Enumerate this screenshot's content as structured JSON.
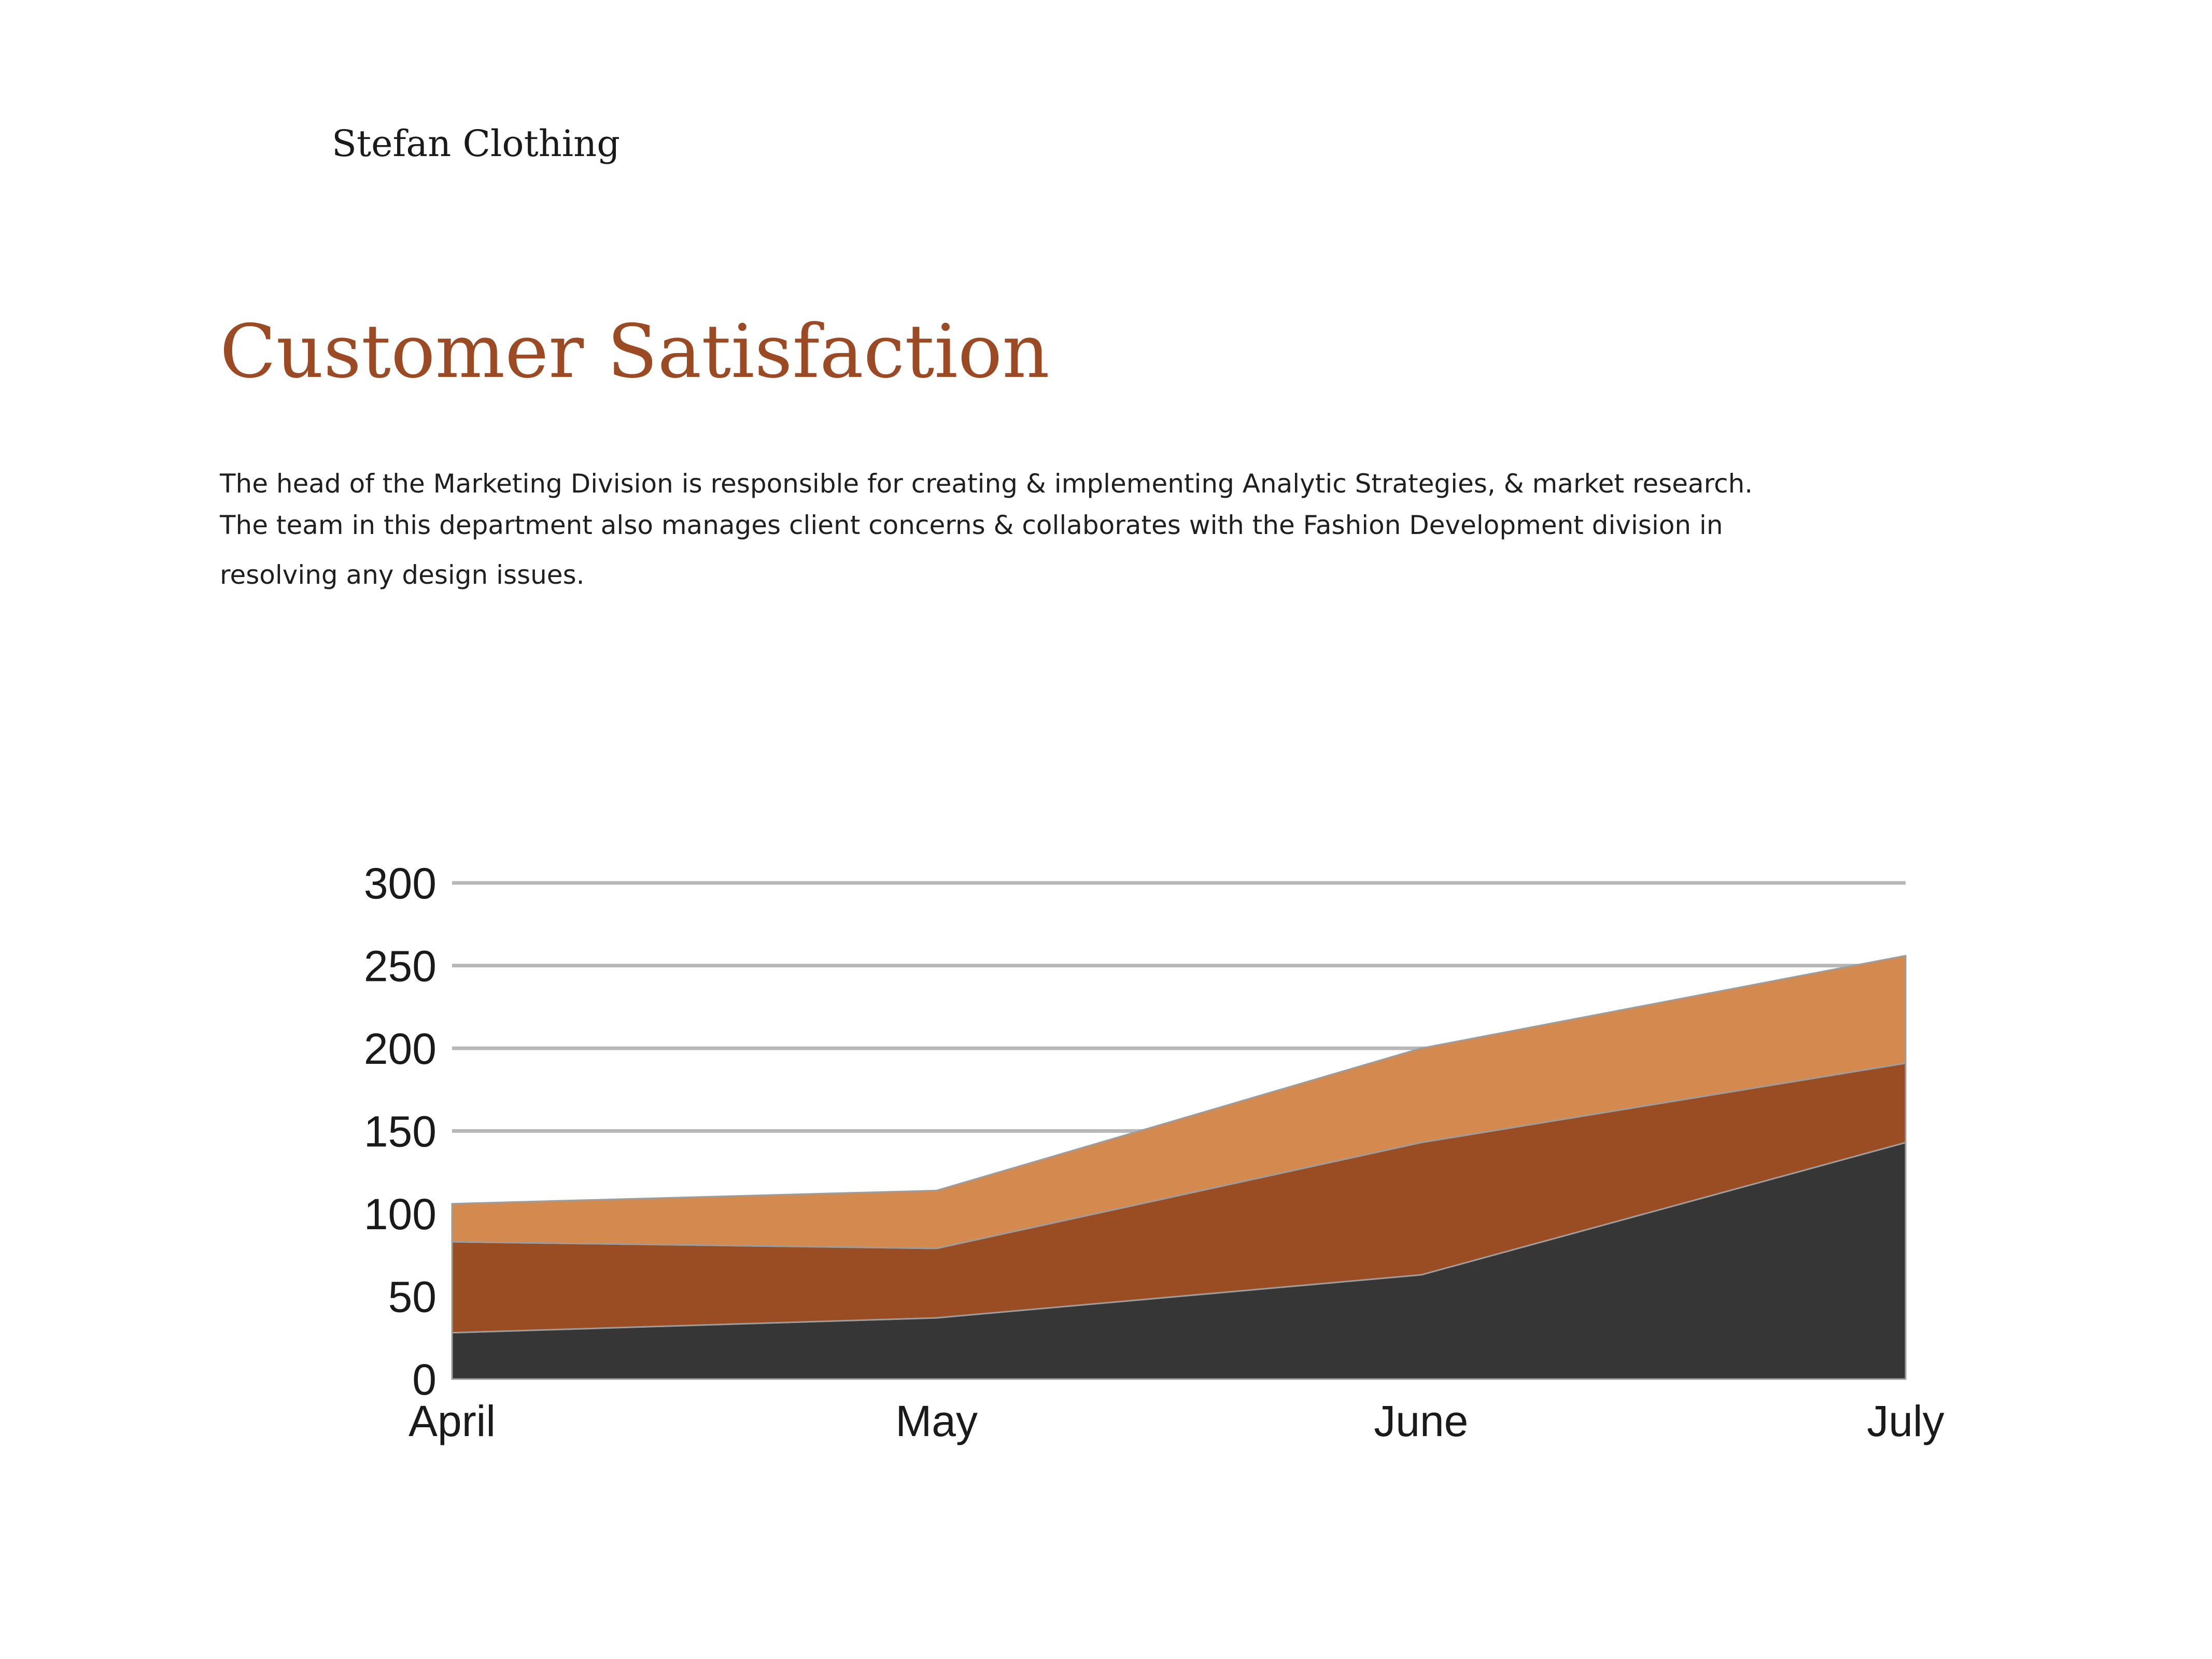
{
  "header": {
    "brand": "Stefan Clothing"
  },
  "page": {
    "title": "Customer Satisfaction",
    "description_lines": [
      "The head of the Marketing Division is responsible for creating & implementing Analytic Strategies, & market research.",
      "The team in this department also manages client concerns & collaborates with the Fashion Development division in",
      "resolving any design issues."
    ]
  },
  "colors": {
    "title": "#9b4a23",
    "series_dark": "#363636",
    "series_rust": "#9a4c23",
    "series_orange": "#d4894f",
    "grid": "#b8b8b8"
  },
  "chart_data": {
    "type": "area",
    "stacked": true,
    "categories": [
      "April",
      "May",
      "June",
      "July"
    ],
    "ylim": [
      0,
      300
    ],
    "yticks": [
      0,
      50,
      100,
      150,
      200,
      250,
      300
    ],
    "grid": true,
    "legend": "none",
    "title": "",
    "xlabel": "",
    "ylabel": "",
    "series": [
      {
        "values": [
          28,
          37,
          63,
          143
        ],
        "color": "#363636"
      },
      {
        "values": [
          55,
          42,
          80,
          48
        ],
        "color": "#9a4c23"
      },
      {
        "values": [
          23,
          35,
          57,
          65
        ],
        "color": "#d4894f"
      }
    ]
  }
}
